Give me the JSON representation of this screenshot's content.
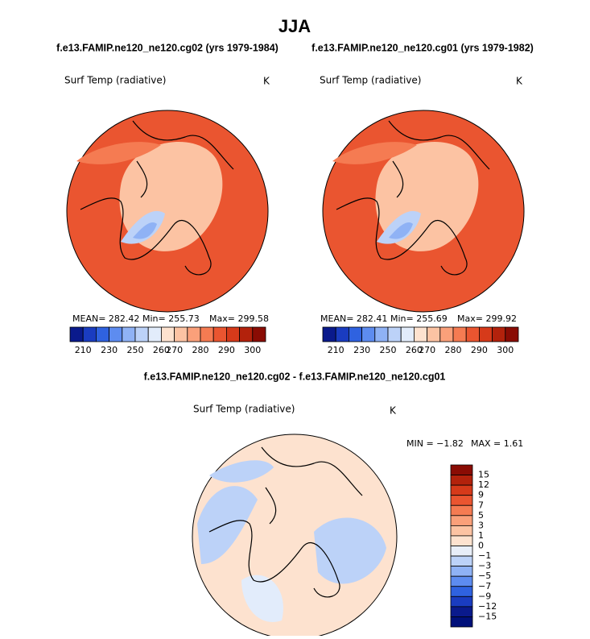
{
  "title": "JJA",
  "panels": [
    {
      "subtitle": "f.e13.FAMIP.ne120_ne120.cg02 (yrs 1979-1984)",
      "variable": "Surf Temp (radiative)",
      "unit": "K",
      "stats": [
        "MEAN= 282.42",
        "Min= 255.73",
        "Max= 299.58"
      ]
    },
    {
      "subtitle": "f.e13.FAMIP.ne120_ne120.cg01 (yrs 1979-1982)",
      "variable": "Surf Temp (radiative)",
      "unit": "K",
      "stats": [
        "MEAN= 282.41",
        "Min= 255.69",
        "Max= 299.92"
      ]
    },
    {
      "subtitle": "f.e13.FAMIP.ne120_ne120.cg02 - f.e13.FAMIP.ne120_ne120.cg01",
      "variable": "Surf Temp (radiative)",
      "unit": "K",
      "stats": [
        "MIN = −1.82",
        "MAX =   1.61"
      ]
    }
  ],
  "colorbar_abs": {
    "colors": [
      "#0a1a8c",
      "#1a3cc0",
      "#2f62e0",
      "#5d8cf0",
      "#8fb2f5",
      "#bcd2f8",
      "#e2ecfb",
      "#fde2cf",
      "#fcc3a3",
      "#faa07a",
      "#f57b52",
      "#ea5530",
      "#d63a1a",
      "#b3220c",
      "#8a0c04"
    ],
    "labels": [
      "210",
      "230",
      "250",
      "260",
      "270",
      "280",
      "290",
      "300"
    ]
  },
  "colorbar_diff": {
    "colors": [
      "#8a0c04",
      "#b3220c",
      "#d63a1a",
      "#ea5530",
      "#f57b52",
      "#faa07a",
      "#fcc3a3",
      "#fde2cf",
      "#e8eef8",
      "#bcd2f8",
      "#8fb2f5",
      "#5d8cf0",
      "#2f62e0",
      "#1a3cc0",
      "#0a1a8c",
      "#00107a"
    ],
    "labels": [
      "15",
      "12",
      "9",
      "7",
      "5",
      "3",
      "1",
      "0",
      "−1",
      "−3",
      "−5",
      "−7",
      "−9",
      "−12",
      "−15"
    ]
  }
}
